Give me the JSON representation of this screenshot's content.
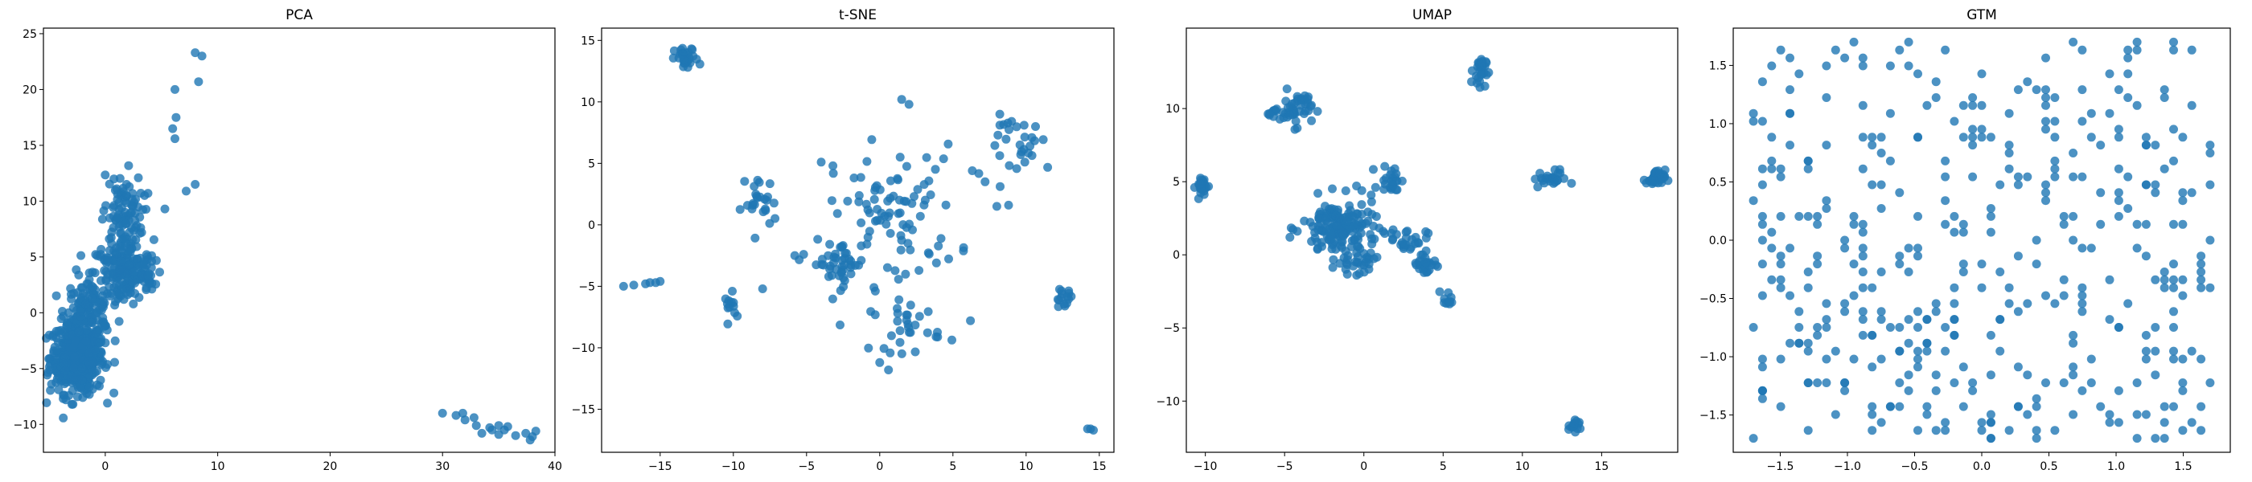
{
  "colors": {
    "points": "#1f77b4"
  },
  "chart_data": [
    {
      "type": "scatter",
      "title": "PCA",
      "xlabel": "",
      "ylabel": "",
      "xlim": [
        -5.5,
        40
      ],
      "ylim": [
        -12.5,
        25.5
      ],
      "xticks": [
        0,
        10,
        20,
        30,
        40
      ],
      "xtick_labels": [
        "0",
        "10",
        "20",
        "30",
        "40"
      ],
      "yticks": [
        -10,
        -5,
        0,
        5,
        10,
        15,
        20,
        25
      ],
      "ytick_labels": [
        "−10",
        "−5",
        "0",
        "5",
        "10",
        "15",
        "20",
        "25"
      ],
      "grid": false,
      "clusters": [
        {
          "cx": -2.5,
          "cy": -4.0,
          "sx": 1.2,
          "sy": 1.6,
          "n": 450
        },
        {
          "cx": -1.5,
          "cy": 0.0,
          "sx": 1.0,
          "sy": 1.5,
          "n": 120
        },
        {
          "cx": 1.5,
          "cy": 3.5,
          "sx": 1.4,
          "sy": 1.5,
          "n": 150
        },
        {
          "cx": 1.5,
          "cy": 8.5,
          "sx": 0.9,
          "sy": 2.0,
          "n": 100
        },
        {
          "cx": 3.0,
          "cy": 3.5,
          "sx": 0.8,
          "sy": 0.8,
          "n": 40
        }
      ],
      "points": [
        [
          8,
          23.3
        ],
        [
          8.6,
          23
        ],
        [
          8.3,
          20.7
        ],
        [
          6.2,
          20
        ],
        [
          6.3,
          17.5
        ],
        [
          6,
          16.5
        ],
        [
          6.2,
          15.6
        ],
        [
          8,
          11.5
        ],
        [
          7.2,
          10.9
        ],
        [
          5.3,
          9.3
        ],
        [
          3.8,
          10.7
        ],
        [
          -4.5,
          -4.5
        ],
        [
          -3.5,
          -7.8
        ],
        [
          -2,
          -7.6
        ],
        [
          30,
          -9
        ],
        [
          31.2,
          -9.2
        ],
        [
          31.8,
          -9
        ],
        [
          32,
          -9.6
        ],
        [
          32.8,
          -9.4
        ],
        [
          33,
          -10.1
        ],
        [
          33.5,
          -10.8
        ],
        [
          34.4,
          -10.5
        ],
        [
          35,
          -10.1
        ],
        [
          35.5,
          -10.5
        ],
        [
          35.8,
          -10.2
        ],
        [
          36.5,
          -11
        ],
        [
          37.4,
          -10.8
        ],
        [
          38,
          -11.1
        ],
        [
          38.3,
          -10.6
        ],
        [
          37.8,
          -11.4
        ],
        [
          35,
          -10.9
        ],
        [
          34.2,
          -10.3
        ]
      ]
    },
    {
      "type": "scatter",
      "title": "t-SNE",
      "xlabel": "",
      "ylabel": "",
      "xlim": [
        -19,
        16
      ],
      "ylim": [
        -18.5,
        16
      ],
      "xticks": [
        -15,
        -10,
        -5,
        0,
        5,
        10,
        15
      ],
      "xtick_labels": [
        "−15",
        "−10",
        "−5",
        "0",
        "5",
        "10",
        "15"
      ],
      "yticks": [
        -15,
        -10,
        -5,
        0,
        5,
        10,
        15
      ],
      "ytick_labels": [
        "−15",
        "−10",
        "−5",
        "0",
        "5",
        "10",
        "15"
      ],
      "grid": false,
      "clusters": [
        {
          "cx": -13.2,
          "cy": 13.5,
          "sx": 0.4,
          "sy": 0.45,
          "n": 30
        },
        {
          "cx": 1.0,
          "cy": 0.8,
          "sx": 2.2,
          "sy": 2.8,
          "n": 90
        },
        {
          "cx": -2.8,
          "cy": -3.2,
          "sx": 0.9,
          "sy": 0.9,
          "n": 40
        },
        {
          "cx": -8.2,
          "cy": 1.8,
          "sx": 0.6,
          "sy": 1.1,
          "n": 25
        },
        {
          "cx": 10.0,
          "cy": 6.5,
          "sx": 1.3,
          "sy": 1.2,
          "n": 30
        },
        {
          "cx": 1.8,
          "cy": -8.3,
          "sx": 1.2,
          "sy": 1.0,
          "n": 30
        },
        {
          "cx": 12.5,
          "cy": -6.0,
          "sx": 0.35,
          "sy": 0.4,
          "n": 15
        },
        {
          "cx": -10.0,
          "cy": -6.6,
          "sx": 0.3,
          "sy": 0.5,
          "n": 12
        }
      ],
      "points": [
        [
          -17.5,
          -5
        ],
        [
          -16.8,
          -4.9
        ],
        [
          -16,
          -4.8
        ],
        [
          -15.3,
          -4.7
        ],
        [
          -15,
          -4.6
        ],
        [
          -15.7,
          -4.7
        ],
        [
          -8,
          -5.2
        ],
        [
          6.2,
          -7.8
        ],
        [
          8,
          1.5
        ],
        [
          8.8,
          1.6
        ],
        [
          7.2,
          3.5
        ],
        [
          14.4,
          -16.6
        ],
        [
          14.6,
          -16.7
        ],
        [
          14.2,
          -16.6
        ],
        [
          1.5,
          10.2
        ],
        [
          2,
          9.8
        ],
        [
          0,
          -11.2
        ],
        [
          0.6,
          -11.8
        ],
        [
          -4,
          5.1
        ],
        [
          -3.2,
          4.8
        ],
        [
          -5.2,
          -2.4
        ],
        [
          -5.8,
          -2.5
        ]
      ]
    },
    {
      "type": "scatter",
      "title": "UMAP",
      "xlabel": "",
      "ylabel": "",
      "xlim": [
        -11.2,
        19.8
      ],
      "ylim": [
        -13.5,
        15.5
      ],
      "xticks": [
        -10,
        -5,
        0,
        5,
        10,
        15
      ],
      "xtick_labels": [
        "−10",
        "−5",
        "0",
        "5",
        "10",
        "15"
      ],
      "yticks": [
        -10,
        -5,
        0,
        5,
        10
      ],
      "ytick_labels": [
        "−10",
        "−5",
        "0",
        "5",
        "10"
      ],
      "grid": false,
      "clusters": [
        {
          "cx": -10.2,
          "cy": 4.7,
          "sx": 0.2,
          "sy": 0.4,
          "n": 25
        },
        {
          "cx": -4.3,
          "cy": 10.0,
          "sx": 0.5,
          "sy": 0.6,
          "n": 40
        },
        {
          "cx": -5.5,
          "cy": 9.7,
          "sx": 0.3,
          "sy": 0.2,
          "n": 12
        },
        {
          "cx": -1.5,
          "cy": 1.8,
          "sx": 1.2,
          "sy": 1.0,
          "n": 160
        },
        {
          "cx": -0.5,
          "cy": -0.5,
          "sx": 0.6,
          "sy": 0.4,
          "n": 30
        },
        {
          "cx": 1.8,
          "cy": 5.2,
          "sx": 0.4,
          "sy": 0.5,
          "n": 25
        },
        {
          "cx": 2.8,
          "cy": 1.0,
          "sx": 0.6,
          "sy": 0.4,
          "n": 25
        },
        {
          "cx": 3.9,
          "cy": -0.6,
          "sx": 0.5,
          "sy": 0.4,
          "n": 25
        },
        {
          "cx": 7.3,
          "cy": 12.6,
          "sx": 0.2,
          "sy": 0.5,
          "n": 30
        },
        {
          "cx": 11.7,
          "cy": 5.2,
          "sx": 0.5,
          "sy": 0.3,
          "n": 25
        },
        {
          "cx": 18.4,
          "cy": 5.2,
          "sx": 0.3,
          "sy": 0.3,
          "n": 30
        },
        {
          "cx": 13.3,
          "cy": -11.8,
          "sx": 0.2,
          "sy": 0.25,
          "n": 15
        },
        {
          "cx": 5.3,
          "cy": -3.0,
          "sx": 0.2,
          "sy": 0.3,
          "n": 10
        }
      ],
      "points": []
    },
    {
      "type": "scatter",
      "title": "GTM",
      "xlabel": "",
      "ylabel": "",
      "xlim": [
        -1.85,
        1.85
      ],
      "ylim": [
        -1.82,
        1.82
      ],
      "xticks": [
        -1.5,
        -1,
        -0.5,
        0,
        0.5,
        1,
        1.5
      ],
      "xtick_labels": [
        "−1.5",
        "−1.0",
        "−0.5",
        "0.0",
        "0.5",
        "1.0",
        "1.5"
      ],
      "yticks": [
        -1.5,
        -1,
        -0.5,
        0,
        0.5,
        1,
        1.5
      ],
      "ytick_labels": [
        "−1.5",
        "−1.0",
        "−0.5",
        "0.0",
        "0.5",
        "1.0",
        "1.5"
      ],
      "grid": false,
      "grid_points": {
        "n": 420,
        "step": 0.068,
        "min": -1.7,
        "max": 1.7
      },
      "points": []
    }
  ]
}
